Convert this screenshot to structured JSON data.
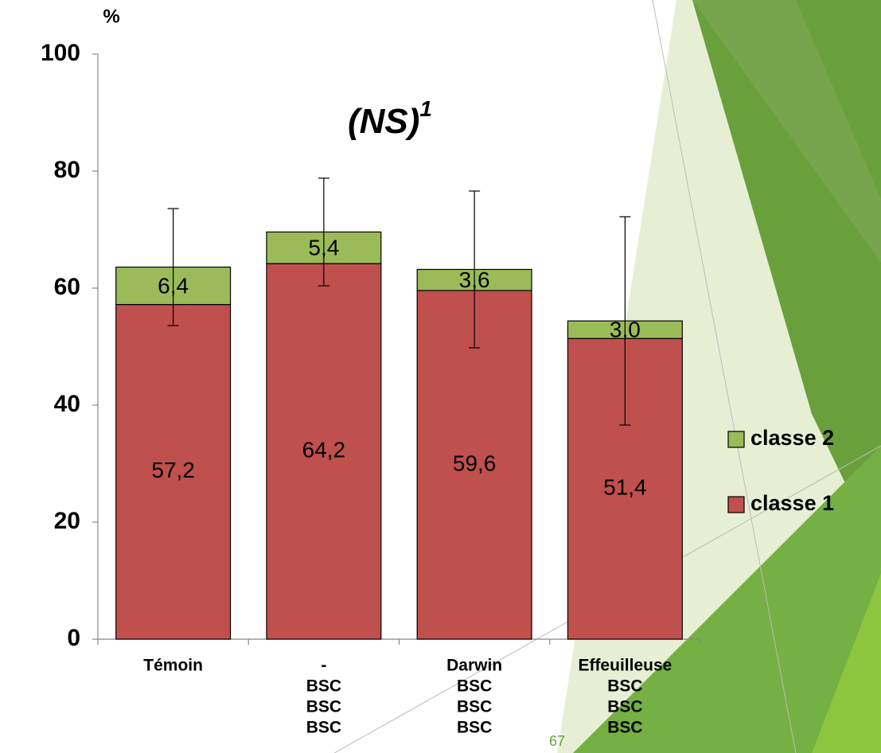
{
  "chart_data": {
    "type": "stacked-bar",
    "title": "(NS)",
    "title_superscript": "1",
    "y_label": "%",
    "categories": [
      [
        "Témoin"
      ],
      [
        "-",
        "BSC",
        "BSC",
        "BSC"
      ],
      [
        "Darwin",
        "BSC",
        "BSC",
        "BSC"
      ],
      [
        "Effeuilleuse",
        "BSC",
        "BSC",
        "BSC"
      ]
    ],
    "series": [
      {
        "name": "classe 1",
        "color": "#c0504d",
        "values": [
          57.2,
          64.2,
          59.6,
          51.4
        ],
        "value_labels": [
          "57,2",
          "64,2",
          "59,6",
          "51,4"
        ]
      },
      {
        "name": "classe 2",
        "color": "#9bbb59",
        "values": [
          6.4,
          5.4,
          3.6,
          3.0
        ],
        "value_labels": [
          "6,4",
          "5,4",
          "3,6",
          "3,0"
        ]
      }
    ],
    "errors": [
      10,
      9.2,
      13.4,
      17.8
    ],
    "ylim": [
      0,
      100
    ],
    "yticks": [
      0,
      20,
      40,
      60,
      80,
      100
    ],
    "legend": "right"
  },
  "page_number": "67"
}
